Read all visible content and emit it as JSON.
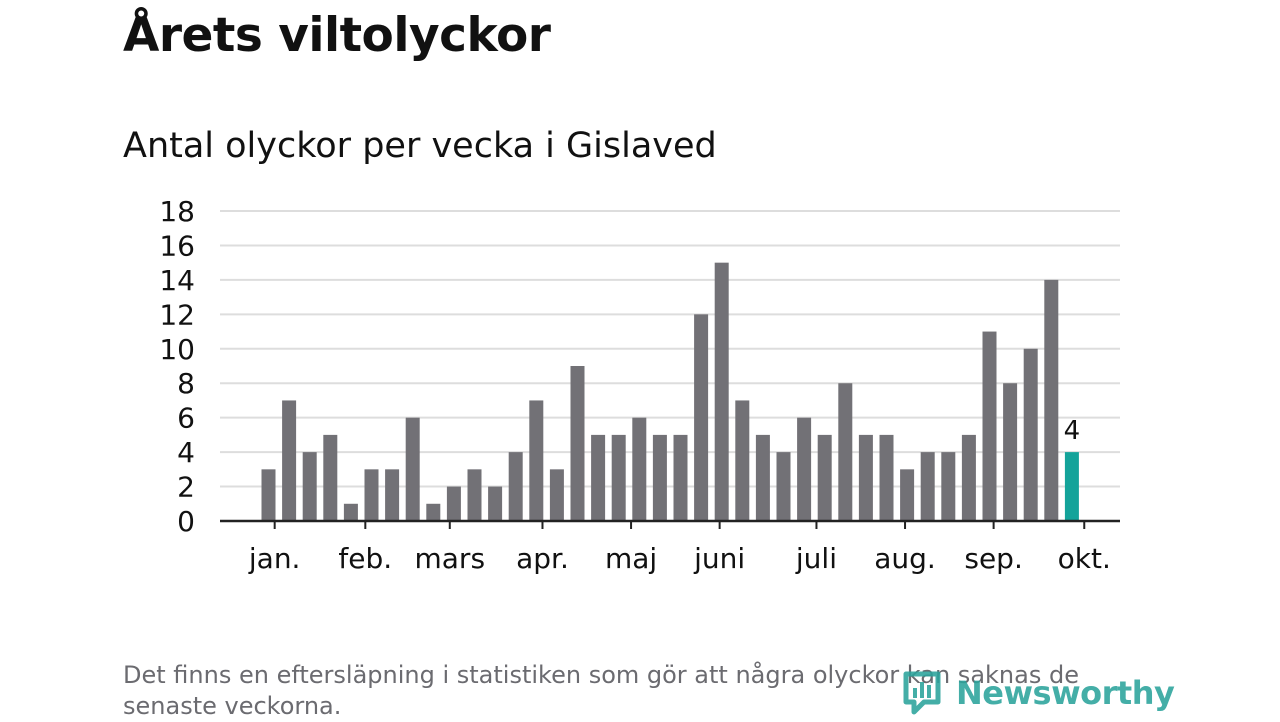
{
  "title": "Årets viltolyckor",
  "subtitle": "Antal olyckor per vecka i Gislaved",
  "footnote": "Det finns en eftersläpning i statistiken som gör att några olyckor kan saknas de senaste veckorna.",
  "logo_text": "Newsworthy",
  "colors": {
    "bar": "#727176",
    "highlight": "#14a39a",
    "grid": "#dddddd",
    "axis": "#222222",
    "text": "#111111"
  },
  "chart_data": {
    "type": "bar",
    "title": "Antal olyckor per vecka i Gislaved",
    "ylim": [
      0,
      18
    ],
    "yticks": [
      0,
      2,
      4,
      6,
      8,
      10,
      12,
      14,
      16,
      18
    ],
    "grid": true,
    "weeks": [
      1,
      2,
      3,
      4,
      5,
      6,
      7,
      8,
      9,
      10,
      11,
      12,
      13,
      14,
      15,
      16,
      17,
      18,
      19,
      20,
      21,
      22,
      23,
      24,
      25,
      26,
      27,
      28,
      29,
      30,
      31,
      32,
      33,
      34,
      35,
      36,
      37,
      38,
      39,
      40
    ],
    "values": [
      3,
      7,
      4,
      5,
      1,
      3,
      3,
      6,
      1,
      2,
      3,
      2,
      4,
      7,
      3,
      9,
      5,
      5,
      6,
      5,
      5,
      12,
      15,
      7,
      5,
      4,
      6,
      5,
      8,
      5,
      5,
      3,
      4,
      4,
      5,
      11,
      8,
      10,
      14,
      4
    ],
    "highlight_index": 39,
    "highlight_label": "4",
    "month_ticks": [
      {
        "label": "jan.",
        "week": 1.3
      },
      {
        "label": "feb.",
        "week": 5.7
      },
      {
        "label": "mars",
        "week": 9.8
      },
      {
        "label": "apr.",
        "week": 14.3
      },
      {
        "label": "maj",
        "week": 18.6
      },
      {
        "label": "juni",
        "week": 22.9
      },
      {
        "label": "juli",
        "week": 27.6
      },
      {
        "label": "aug.",
        "week": 31.9
      },
      {
        "label": "sep.",
        "week": 36.2
      },
      {
        "label": "okt.",
        "week": 40.6
      }
    ]
  }
}
